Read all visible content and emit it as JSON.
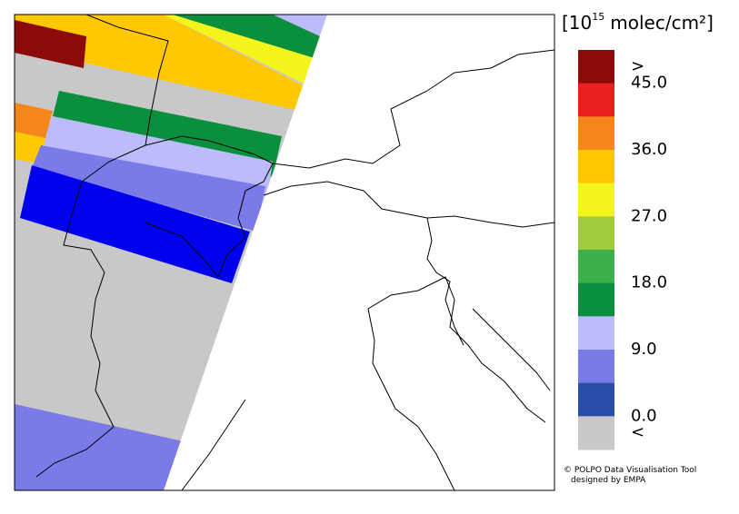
{
  "legend": {
    "unit": {
      "prefix": "[10",
      "exponent": "15",
      "suffix": "molec/cm²]"
    },
    "swatches": [
      "#8b0a0a",
      "#e82020",
      "#f5861c",
      "#ffc800",
      "#f5f51e",
      "#9fcc3c",
      "#3cb04a",
      "#0a8f3c",
      "#bcbcfa",
      "#7a7ae8",
      "#2a4ea8",
      "#c8c8c8"
    ],
    "labels": [
      ">",
      "45.0",
      "36.0",
      "27.0",
      "18.0",
      "9.0",
      "0.0",
      "<"
    ]
  },
  "credit": [
    "© POLPO Data Visualisation Tool",
    "designed by EMPA"
  ]
}
